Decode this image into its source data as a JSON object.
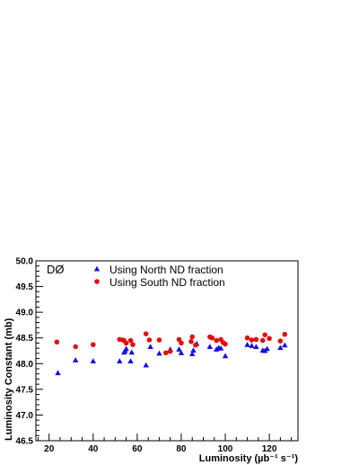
{
  "chart_data": {
    "type": "scatter",
    "experiment_label": "DØ",
    "xlabel": "Luminosity (µb⁻¹ s⁻¹)",
    "ylabel": "Luminosity Constant (mb)",
    "xlim": [
      14,
      133
    ],
    "ylim": [
      46.5,
      50.0
    ],
    "x_ticks": [
      20,
      40,
      60,
      80,
      100,
      120
    ],
    "y_ticks": [
      "46.5",
      "47.0",
      "47.5",
      "48.0",
      "48.5",
      "49.0",
      "49.5",
      "50.0"
    ],
    "legend_position": "top-left",
    "series": [
      {
        "name": "Using North ND fraction",
        "marker": "triangle",
        "color": "#1010e0",
        "points": [
          [
            24,
            47.82
          ],
          [
            32,
            48.07
          ],
          [
            40,
            48.05
          ],
          [
            52,
            48.05
          ],
          [
            54,
            48.22
          ],
          [
            54.5,
            48.25
          ],
          [
            55,
            48.29
          ],
          [
            57,
            48.05
          ],
          [
            57.5,
            48.22
          ],
          [
            64,
            47.97
          ],
          [
            66,
            48.33
          ],
          [
            70,
            48.2
          ],
          [
            75,
            48.28
          ],
          [
            79,
            48.28
          ],
          [
            80,
            48.21
          ],
          [
            85,
            48.19
          ],
          [
            85.5,
            48.26
          ],
          [
            87,
            48.39
          ],
          [
            93,
            48.33
          ],
          [
            96,
            48.28
          ],
          [
            97,
            48.31
          ],
          [
            98,
            48.3
          ],
          [
            100,
            48.15
          ],
          [
            110,
            48.37
          ],
          [
            112,
            48.35
          ],
          [
            114,
            48.33
          ],
          [
            117,
            48.26
          ],
          [
            118,
            48.25
          ],
          [
            119,
            48.29
          ],
          [
            125,
            48.31
          ],
          [
            127,
            48.36
          ]
        ]
      },
      {
        "name": "Using South ND fraction",
        "marker": "circle",
        "color": "#e01010",
        "points": [
          [
            23.5,
            48.42
          ],
          [
            32,
            48.33
          ],
          [
            40,
            48.37
          ],
          [
            52,
            48.47
          ],
          [
            53.5,
            48.46
          ],
          [
            54,
            48.45
          ],
          [
            55,
            48.4
          ],
          [
            57,
            48.45
          ],
          [
            58,
            48.37
          ],
          [
            64,
            48.58
          ],
          [
            65.5,
            48.46
          ],
          [
            70,
            48.46
          ],
          [
            73,
            48.21
          ],
          [
            75,
            48.24
          ],
          [
            79,
            48.47
          ],
          [
            80,
            48.4
          ],
          [
            84.5,
            48.43
          ],
          [
            85,
            48.52
          ],
          [
            86.5,
            48.36
          ],
          [
            93,
            48.52
          ],
          [
            94,
            48.5
          ],
          [
            96,
            48.45
          ],
          [
            98,
            48.47
          ],
          [
            99,
            48.41
          ],
          [
            100,
            48.38
          ],
          [
            110,
            48.5
          ],
          [
            112,
            48.46
          ],
          [
            114,
            48.47
          ],
          [
            117,
            48.45
          ],
          [
            118,
            48.56
          ],
          [
            120,
            48.49
          ],
          [
            125,
            48.44
          ],
          [
            127,
            48.57
          ]
        ]
      }
    ]
  }
}
